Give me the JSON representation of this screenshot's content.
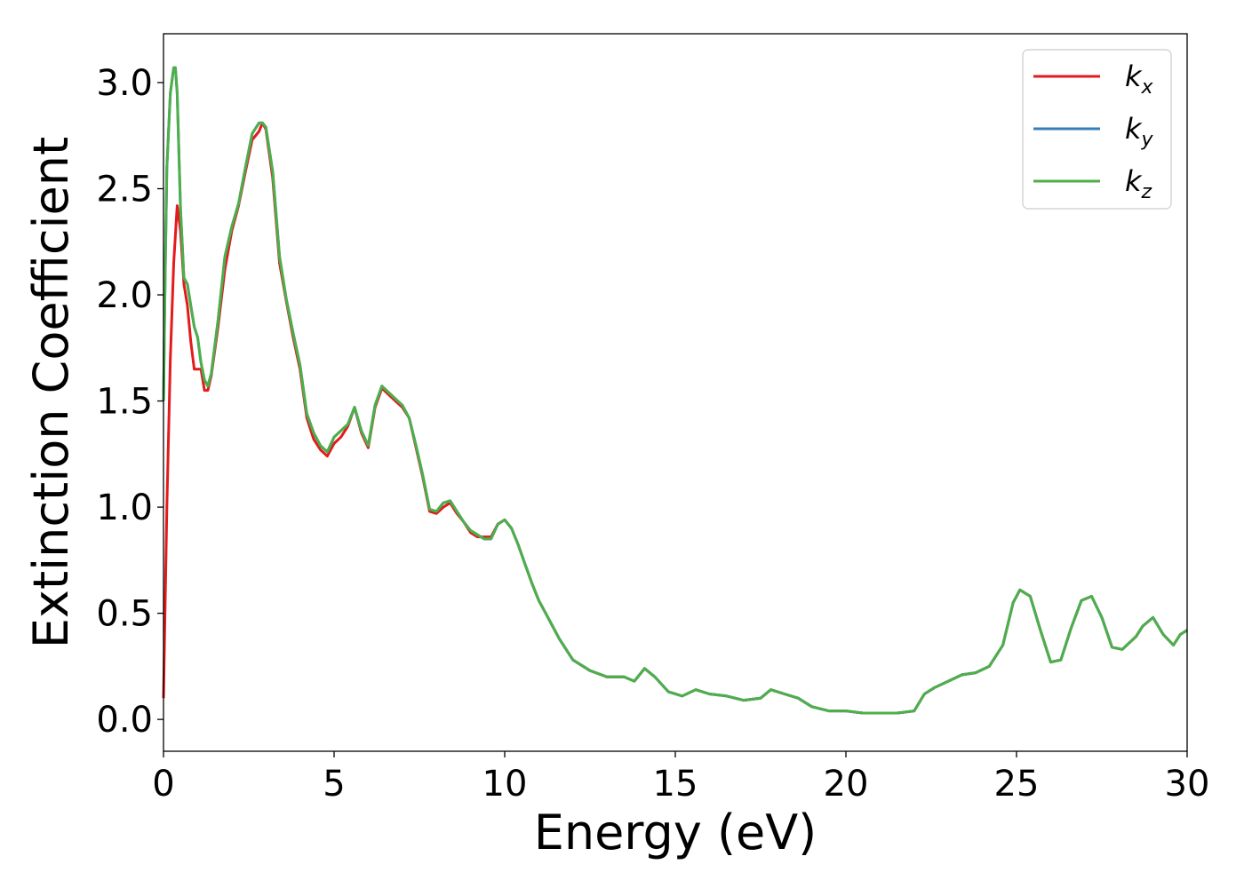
{
  "chart_data": {
    "type": "line",
    "title": "",
    "xlabel": "Energy (eV)",
    "ylabel": "Extinction Coefficient",
    "xlim": [
      0,
      30
    ],
    "ylim": [
      -0.15,
      3.23
    ],
    "xticks": [
      0,
      5,
      10,
      15,
      20,
      25,
      30
    ],
    "xtick_labels": [
      "0",
      "5",
      "10",
      "15",
      "20",
      "25",
      "30"
    ],
    "yticks": [
      0.0,
      0.5,
      1.0,
      1.5,
      2.0,
      2.5,
      3.0
    ],
    "ytick_labels": [
      "0.0",
      "0.5",
      "1.0",
      "1.5",
      "2.0",
      "2.5",
      "3.0"
    ],
    "grid": false,
    "legend_position": "top-right",
    "series": [
      {
        "name": "k",
        "sub": "x",
        "color": "#e41a1c",
        "x": [
          0,
          0.1,
          0.2,
          0.3,
          0.4,
          0.5,
          0.6,
          0.7,
          0.8,
          0.9,
          1.0,
          1.1,
          1.2,
          1.3,
          1.4,
          1.6,
          1.8,
          2.0,
          2.2,
          2.4,
          2.6,
          2.8,
          2.9,
          3.0,
          3.2,
          3.4,
          3.6,
          3.8,
          4.0,
          4.2,
          4.4,
          4.6,
          4.8,
          5.0,
          5.2,
          5.4,
          5.6,
          5.8,
          6.0,
          6.2,
          6.4,
          6.6,
          6.8,
          7.0,
          7.2,
          7.4,
          7.6,
          7.8,
          8.0,
          8.2,
          8.4,
          8.6,
          8.8,
          9.0,
          9.2,
          9.4,
          9.6,
          9.8,
          10.0,
          10.2,
          10.4,
          10.6,
          10.8,
          11.0,
          11.2,
          11.4,
          11.6,
          11.8,
          12.0,
          12.5,
          13.0,
          13.5,
          13.8,
          14.1,
          14.4,
          14.8,
          15.2,
          15.6,
          16.0,
          16.5,
          17.0,
          17.5,
          17.8,
          18.2,
          18.6,
          19.0,
          19.5,
          20.0,
          20.5,
          21.0,
          21.5,
          22.0,
          22.3,
          22.6,
          23.0,
          23.4,
          23.8,
          24.2,
          24.6,
          24.9,
          25.1,
          25.4,
          25.7,
          26.0,
          26.3,
          26.6,
          26.9,
          27.2,
          27.5,
          27.8,
          28.1,
          28.5,
          28.7,
          29.0,
          29.3,
          29.6,
          29.8,
          30.0
        ],
        "y": [
          0.1,
          1.0,
          1.7,
          2.15,
          2.42,
          2.3,
          2.05,
          1.95,
          1.78,
          1.65,
          1.65,
          1.65,
          1.55,
          1.55,
          1.62,
          1.85,
          2.12,
          2.3,
          2.42,
          2.58,
          2.73,
          2.77,
          2.81,
          2.78,
          2.55,
          2.15,
          1.97,
          1.8,
          1.65,
          1.42,
          1.32,
          1.27,
          1.24,
          1.3,
          1.33,
          1.38,
          1.47,
          1.35,
          1.28,
          1.47,
          1.56,
          1.53,
          1.5,
          1.47,
          1.42,
          1.28,
          1.14,
          0.98,
          0.97,
          1.0,
          1.02,
          0.97,
          0.93,
          0.88,
          0.86,
          0.86,
          0.86,
          0.92,
          0.94,
          0.9,
          0.82,
          0.73,
          0.64,
          0.56,
          0.5,
          0.44,
          0.38,
          0.33,
          0.28,
          0.23,
          0.2,
          0.2,
          0.18,
          0.24,
          0.2,
          0.13,
          0.11,
          0.14,
          0.12,
          0.11,
          0.09,
          0.1,
          0.14,
          0.12,
          0.1,
          0.06,
          0.04,
          0.04,
          0.03,
          0.03,
          0.03,
          0.04,
          0.12,
          0.15,
          0.18,
          0.21,
          0.22,
          0.25,
          0.35,
          0.55,
          0.61,
          0.58,
          0.42,
          0.27,
          0.28,
          0.43,
          0.56,
          0.58,
          0.48,
          0.34,
          0.33,
          0.39,
          0.44,
          0.48,
          0.4,
          0.35,
          0.4,
          0.42
        ]
      },
      {
        "name": "k",
        "sub": "y",
        "color": "#377eb8",
        "x": [
          0,
          0.05,
          0.1,
          0.2,
          0.3,
          0.35,
          0.4,
          0.5,
          0.6,
          0.7,
          0.8,
          0.9,
          1.0,
          1.1,
          1.2,
          1.3,
          1.4,
          1.6,
          1.8,
          2.0,
          2.2,
          2.4,
          2.6,
          2.8,
          2.9,
          3.0,
          3.2,
          3.4,
          3.6,
          3.8,
          4.0,
          4.2,
          4.4,
          4.6,
          4.8,
          5.0,
          5.2,
          5.4,
          5.6,
          5.8,
          6.0,
          6.2,
          6.4,
          6.6,
          6.8,
          7.0,
          7.2,
          7.4,
          7.6,
          7.8,
          8.0,
          8.2,
          8.4,
          8.6,
          8.8,
          9.0,
          9.2,
          9.4,
          9.6,
          9.8,
          10.0,
          10.2,
          10.4,
          10.6,
          10.8,
          11.0,
          11.2,
          11.4,
          11.6,
          11.8,
          12.0,
          12.5,
          13.0,
          13.5,
          13.8,
          14.1,
          14.4,
          14.8,
          15.2,
          15.6,
          16.0,
          16.5,
          17.0,
          17.5,
          17.8,
          18.2,
          18.6,
          19.0,
          19.5,
          20.0,
          20.5,
          21.0,
          21.5,
          22.0,
          22.3,
          22.6,
          23.0,
          23.4,
          23.8,
          24.2,
          24.6,
          24.9,
          25.1,
          25.4,
          25.7,
          26.0,
          26.3,
          26.6,
          26.9,
          27.2,
          27.5,
          27.8,
          28.1,
          28.5,
          28.7,
          29.0,
          29.3,
          29.6,
          29.8,
          30.0
        ],
        "y": [
          1.5,
          2.1,
          2.6,
          2.95,
          3.07,
          3.07,
          2.95,
          2.4,
          2.08,
          2.05,
          1.95,
          1.85,
          1.8,
          1.68,
          1.6,
          1.57,
          1.63,
          1.88,
          2.18,
          2.32,
          2.43,
          2.6,
          2.76,
          2.81,
          2.81,
          2.79,
          2.58,
          2.18,
          1.98,
          1.82,
          1.67,
          1.44,
          1.35,
          1.29,
          1.26,
          1.33,
          1.36,
          1.39,
          1.47,
          1.36,
          1.29,
          1.48,
          1.57,
          1.54,
          1.51,
          1.48,
          1.42,
          1.29,
          1.15,
          0.99,
          0.98,
          1.02,
          1.03,
          0.98,
          0.93,
          0.89,
          0.87,
          0.85,
          0.85,
          0.92,
          0.94,
          0.9,
          0.82,
          0.73,
          0.64,
          0.56,
          0.5,
          0.44,
          0.38,
          0.33,
          0.28,
          0.23,
          0.2,
          0.2,
          0.18,
          0.24,
          0.2,
          0.13,
          0.11,
          0.14,
          0.12,
          0.11,
          0.09,
          0.1,
          0.14,
          0.12,
          0.1,
          0.06,
          0.04,
          0.04,
          0.03,
          0.03,
          0.03,
          0.04,
          0.12,
          0.15,
          0.18,
          0.21,
          0.22,
          0.25,
          0.35,
          0.55,
          0.61,
          0.58,
          0.42,
          0.27,
          0.28,
          0.43,
          0.56,
          0.58,
          0.48,
          0.34,
          0.33,
          0.39,
          0.44,
          0.48,
          0.4,
          0.35,
          0.4,
          0.42
        ]
      },
      {
        "name": "k",
        "sub": "z",
        "color": "#4daf4a",
        "x": [
          0,
          0.05,
          0.1,
          0.2,
          0.3,
          0.35,
          0.4,
          0.5,
          0.6,
          0.7,
          0.8,
          0.9,
          1.0,
          1.1,
          1.2,
          1.3,
          1.4,
          1.6,
          1.8,
          2.0,
          2.2,
          2.4,
          2.6,
          2.8,
          2.9,
          3.0,
          3.2,
          3.4,
          3.6,
          3.8,
          4.0,
          4.2,
          4.4,
          4.6,
          4.8,
          5.0,
          5.2,
          5.4,
          5.6,
          5.8,
          6.0,
          6.2,
          6.4,
          6.6,
          6.8,
          7.0,
          7.2,
          7.4,
          7.6,
          7.8,
          8.0,
          8.2,
          8.4,
          8.6,
          8.8,
          9.0,
          9.2,
          9.4,
          9.6,
          9.8,
          10.0,
          10.2,
          10.4,
          10.6,
          10.8,
          11.0,
          11.2,
          11.4,
          11.6,
          11.8,
          12.0,
          12.5,
          13.0,
          13.5,
          13.8,
          14.1,
          14.4,
          14.8,
          15.2,
          15.6,
          16.0,
          16.5,
          17.0,
          17.5,
          17.8,
          18.2,
          18.6,
          19.0,
          19.5,
          20.0,
          20.5,
          21.0,
          21.5,
          22.0,
          22.3,
          22.6,
          23.0,
          23.4,
          23.8,
          24.2,
          24.6,
          24.9,
          25.1,
          25.4,
          25.7,
          26.0,
          26.3,
          26.6,
          26.9,
          27.2,
          27.5,
          27.8,
          28.1,
          28.5,
          28.7,
          29.0,
          29.3,
          29.6,
          29.8,
          30.0
        ],
        "y": [
          1.5,
          2.1,
          2.6,
          2.95,
          3.07,
          3.07,
          2.95,
          2.4,
          2.08,
          2.05,
          1.95,
          1.85,
          1.8,
          1.68,
          1.6,
          1.57,
          1.63,
          1.88,
          2.18,
          2.32,
          2.43,
          2.6,
          2.76,
          2.81,
          2.81,
          2.79,
          2.58,
          2.18,
          1.98,
          1.82,
          1.67,
          1.44,
          1.35,
          1.29,
          1.26,
          1.33,
          1.36,
          1.39,
          1.47,
          1.36,
          1.29,
          1.48,
          1.57,
          1.54,
          1.51,
          1.48,
          1.42,
          1.29,
          1.15,
          0.99,
          0.98,
          1.02,
          1.03,
          0.98,
          0.93,
          0.89,
          0.87,
          0.85,
          0.85,
          0.92,
          0.94,
          0.9,
          0.82,
          0.73,
          0.64,
          0.56,
          0.5,
          0.44,
          0.38,
          0.33,
          0.28,
          0.23,
          0.2,
          0.2,
          0.18,
          0.24,
          0.2,
          0.13,
          0.11,
          0.14,
          0.12,
          0.11,
          0.09,
          0.1,
          0.14,
          0.12,
          0.1,
          0.06,
          0.04,
          0.04,
          0.03,
          0.03,
          0.03,
          0.04,
          0.12,
          0.15,
          0.18,
          0.21,
          0.22,
          0.25,
          0.35,
          0.55,
          0.61,
          0.58,
          0.42,
          0.27,
          0.28,
          0.43,
          0.56,
          0.58,
          0.48,
          0.34,
          0.33,
          0.39,
          0.44,
          0.48,
          0.4,
          0.35,
          0.4,
          0.42
        ]
      }
    ]
  }
}
